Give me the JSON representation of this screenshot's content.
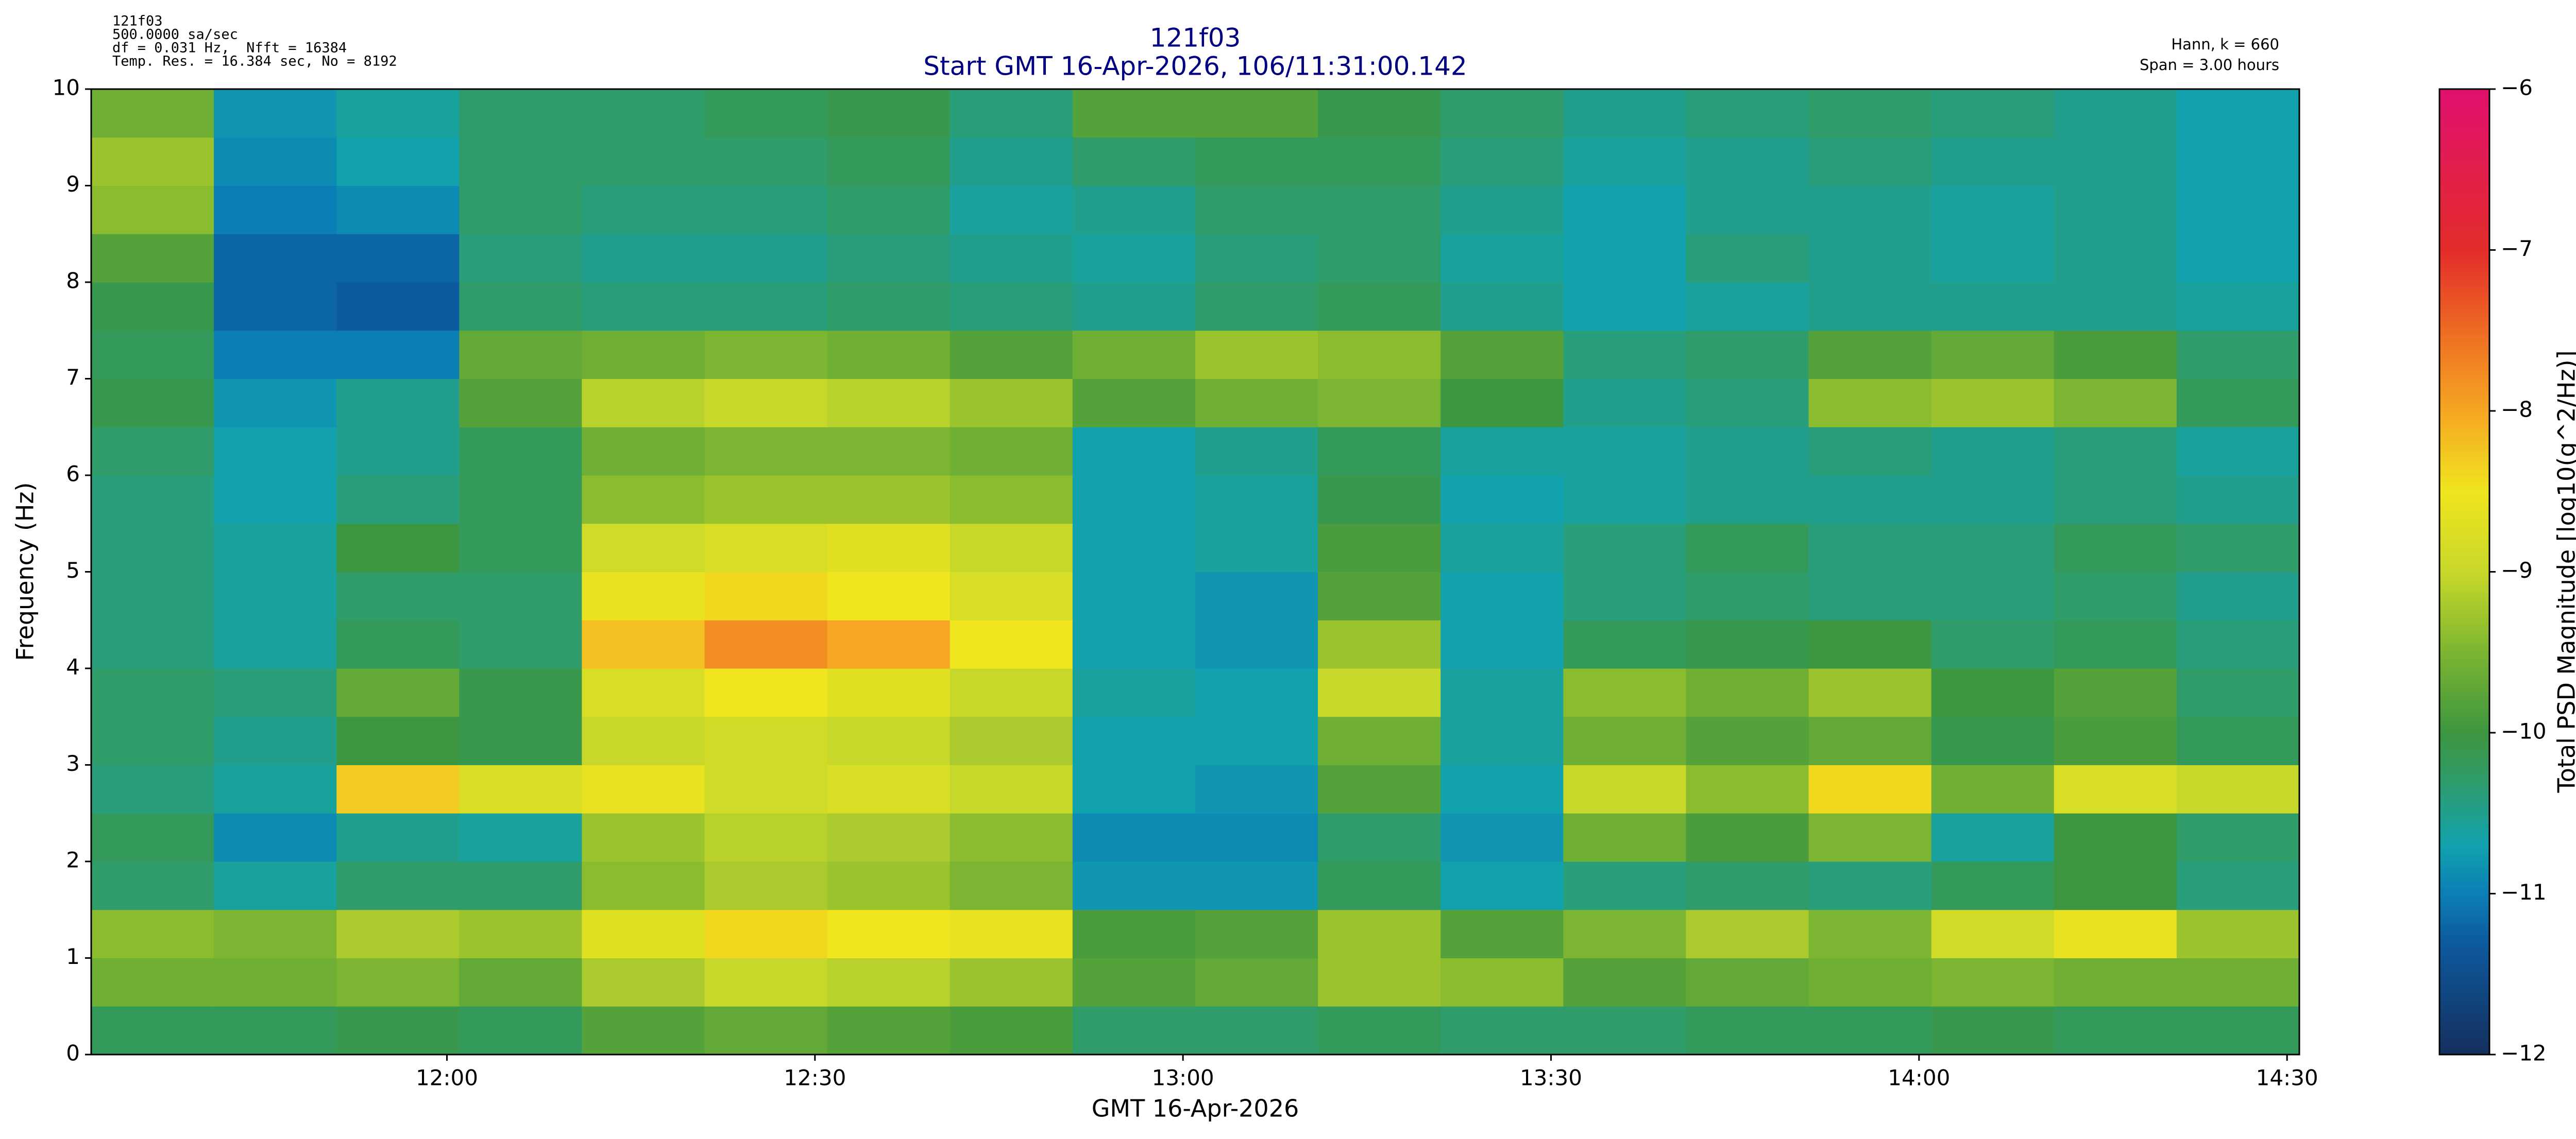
{
  "chart_data": {
    "type": "heatmap",
    "title": "121f03",
    "subtitle": "Start GMT 16-Apr-2026, 106/11:31:00.142",
    "header_left": [
      "121f03",
      "500.0000 sa/sec",
      "df = 0.031 Hz,  Nfft = 16384",
      "Temp. Res. = 16.384 sec, No = 8192"
    ],
    "header_right": [
      "Hann, k = 660",
      "Span = 3.00 hours"
    ],
    "xlabel": "GMT 16-Apr-2026",
    "ylabel": "Frequency (Hz)",
    "xlim": [
      11.5167,
      14.5167
    ],
    "xticks": [
      {
        "value": 12,
        "label": "12:00"
      },
      {
        "value": 12.5,
        "label": "12:30"
      },
      {
        "value": 13,
        "label": "13:00"
      },
      {
        "value": 13.5,
        "label": "13:30"
      },
      {
        "value": 14,
        "label": "14:00"
      },
      {
        "value": 14.5,
        "label": "14:30"
      }
    ],
    "ylim": [
      0,
      10
    ],
    "yticks": [
      0,
      1,
      2,
      3,
      4,
      5,
      6,
      7,
      8,
      9,
      10
    ],
    "x_edges": [
      11.5167,
      11.6833,
      11.85,
      12.0167,
      12.1833,
      12.35,
      12.5167,
      12.6833,
      12.85,
      13.0167,
      13.1833,
      13.35,
      13.5167,
      13.6833,
      13.85,
      14.0167,
      14.1833,
      14.35,
      14.5167
    ],
    "y_edges": [
      0,
      0.5,
      1,
      1.5,
      2,
      2.5,
      3,
      3.5,
      4,
      4.5,
      5,
      5.5,
      6,
      6.5,
      7,
      7.5,
      8,
      8.5,
      9,
      9.5,
      10
    ],
    "z": [
      [
        -10.2,
        -10.2,
        -10.1,
        -10.2,
        -9.8,
        -9.7,
        -9.8,
        -9.9,
        -10.3,
        -10.3,
        -10.2,
        -10.3,
        -10.3,
        -10.2,
        -10.2,
        -10.1,
        -10.2,
        -10.2
      ],
      [
        -9.6,
        -9.6,
        -9.5,
        -9.7,
        -9.2,
        -9.0,
        -9.1,
        -9.3,
        -9.8,
        -9.7,
        -9.3,
        -9.4,
        -9.8,
        -9.7,
        -9.6,
        -9.5,
        -9.6,
        -9.6
      ],
      [
        -9.4,
        -9.5,
        -9.2,
        -9.3,
        -8.7,
        -8.4,
        -8.5,
        -8.6,
        -9.9,
        -9.8,
        -9.3,
        -9.8,
        -9.5,
        -9.2,
        -9.5,
        -8.9,
        -8.6,
        -9.3
      ],
      [
        -10.3,
        -10.6,
        -10.3,
        -10.3,
        -9.4,
        -9.2,
        -9.3,
        -9.5,
        -10.8,
        -10.8,
        -10.2,
        -10.7,
        -10.4,
        -10.3,
        -10.4,
        -10.2,
        -10.0,
        -10.4
      ],
      [
        -10.2,
        -10.9,
        -10.5,
        -10.6,
        -9.3,
        -9.1,
        -9.2,
        -9.4,
        -10.9,
        -10.9,
        -10.3,
        -10.8,
        -9.6,
        -9.9,
        -9.5,
        -10.6,
        -10.0,
        -10.3
      ],
      [
        -10.4,
        -10.6,
        -8.3,
        -8.8,
        -8.6,
        -8.9,
        -8.8,
        -9.0,
        -10.7,
        -10.8,
        -9.8,
        -10.7,
        -9.0,
        -9.4,
        -8.4,
        -9.6,
        -8.8,
        -9.0
      ],
      [
        -10.3,
        -10.5,
        -10.0,
        -10.1,
        -9.0,
        -8.9,
        -9.0,
        -9.2,
        -10.7,
        -10.7,
        -9.6,
        -10.6,
        -9.6,
        -9.8,
        -9.7,
        -10.1,
        -9.9,
        -10.2
      ],
      [
        -10.3,
        -10.4,
        -9.7,
        -10.1,
        -8.8,
        -8.5,
        -8.7,
        -9.0,
        -10.6,
        -10.7,
        -9.0,
        -10.6,
        -9.4,
        -9.6,
        -9.3,
        -10.0,
        -9.8,
        -10.3
      ],
      [
        -10.4,
        -10.6,
        -10.2,
        -10.3,
        -8.2,
        -7.8,
        -8.0,
        -8.5,
        -10.7,
        -10.8,
        -9.3,
        -10.7,
        -10.2,
        -10.1,
        -10.0,
        -10.3,
        -10.2,
        -10.4
      ],
      [
        -10.4,
        -10.6,
        -10.3,
        -10.3,
        -8.6,
        -8.4,
        -8.5,
        -8.8,
        -10.7,
        -10.8,
        -9.8,
        -10.7,
        -10.4,
        -10.3,
        -10.4,
        -10.4,
        -10.3,
        -10.5
      ],
      [
        -10.4,
        -10.6,
        -10.0,
        -10.2,
        -8.9,
        -8.8,
        -8.7,
        -9.0,
        -10.7,
        -10.6,
        -9.9,
        -10.6,
        -10.4,
        -10.2,
        -10.4,
        -10.4,
        -10.2,
        -10.3
      ],
      [
        -10.4,
        -10.7,
        -10.4,
        -10.2,
        -9.4,
        -9.3,
        -9.3,
        -9.4,
        -10.7,
        -10.6,
        -10.1,
        -10.7,
        -10.6,
        -10.5,
        -10.5,
        -10.5,
        -10.4,
        -10.5
      ],
      [
        -10.3,
        -10.7,
        -10.5,
        -10.2,
        -9.6,
        -9.5,
        -9.5,
        -9.6,
        -10.7,
        -10.5,
        -10.2,
        -10.6,
        -10.6,
        -10.5,
        -10.4,
        -10.5,
        -10.4,
        -10.6
      ],
      [
        -10.1,
        -10.8,
        -10.5,
        -9.8,
        -9.1,
        -9.0,
        -9.1,
        -9.3,
        -9.8,
        -9.6,
        -9.5,
        -10.0,
        -10.5,
        -10.4,
        -9.4,
        -9.3,
        -9.5,
        -10.2
      ],
      [
        -10.2,
        -11.0,
        -11.0,
        -9.7,
        -9.6,
        -9.5,
        -9.6,
        -9.8,
        -9.6,
        -9.3,
        -9.4,
        -9.8,
        -10.4,
        -10.3,
        -9.8,
        -9.7,
        -9.9,
        -10.3
      ],
      [
        -10.1,
        -11.2,
        -11.3,
        -10.3,
        -10.4,
        -10.4,
        -10.3,
        -10.4,
        -10.5,
        -10.3,
        -10.2,
        -10.5,
        -10.7,
        -10.6,
        -10.5,
        -10.5,
        -10.5,
        -10.6
      ],
      [
        -9.8,
        -11.2,
        -11.2,
        -10.4,
        -10.5,
        -10.5,
        -10.4,
        -10.5,
        -10.6,
        -10.4,
        -10.3,
        -10.6,
        -10.7,
        -10.4,
        -10.5,
        -10.6,
        -10.5,
        -10.7
      ],
      [
        -9.4,
        -11.0,
        -10.9,
        -10.3,
        -10.4,
        -10.4,
        -10.3,
        -10.6,
        -10.5,
        -10.3,
        -10.3,
        -10.5,
        -10.7,
        -10.5,
        -10.5,
        -10.6,
        -10.5,
        -10.7
      ],
      [
        -9.3,
        -10.9,
        -10.7,
        -10.3,
        -10.3,
        -10.3,
        -10.2,
        -10.5,
        -10.3,
        -10.2,
        -10.2,
        -10.4,
        -10.6,
        -10.5,
        -10.4,
        -10.5,
        -10.5,
        -10.7
      ],
      [
        -9.6,
        -10.8,
        -10.6,
        -10.3,
        -10.3,
        -10.2,
        -10.1,
        -10.4,
        -9.8,
        -9.8,
        -10.1,
        -10.3,
        -10.5,
        -10.4,
        -10.3,
        -10.4,
        -10.5,
        -10.7
      ]
    ],
    "colormap": [
      {
        "value": -12,
        "color": "#142f5e"
      },
      {
        "value": -11.3,
        "color": "#0d5a9e"
      },
      {
        "value": -11,
        "color": "#0b7fb5"
      },
      {
        "value": -10.7,
        "color": "#12a2ae"
      },
      {
        "value": -10.3,
        "color": "#2f9c6a"
      },
      {
        "value": -10,
        "color": "#3d9640"
      },
      {
        "value": -9.5,
        "color": "#7cb531"
      },
      {
        "value": -9,
        "color": "#c8d82a"
      },
      {
        "value": -8.5,
        "color": "#f0e51e"
      },
      {
        "value": -8,
        "color": "#f6a623"
      },
      {
        "value": -7.5,
        "color": "#ef6b24"
      },
      {
        "value": -7,
        "color": "#e32c2a"
      },
      {
        "value": -6,
        "color": "#e0106e"
      }
    ],
    "colorbar": {
      "label": "Total PSD Magnitude [log10(g^2/Hz)]",
      "lim": [
        -12,
        -6
      ],
      "ticks": [
        {
          "value": -12,
          "label": "−12"
        },
        {
          "value": -11,
          "label": "−11"
        },
        {
          "value": -10,
          "label": "−10"
        },
        {
          "value": -9,
          "label": "−9"
        },
        {
          "value": -8,
          "label": "−8"
        },
        {
          "value": -7,
          "label": "−7"
        },
        {
          "value": -6,
          "label": "−6"
        }
      ]
    }
  }
}
